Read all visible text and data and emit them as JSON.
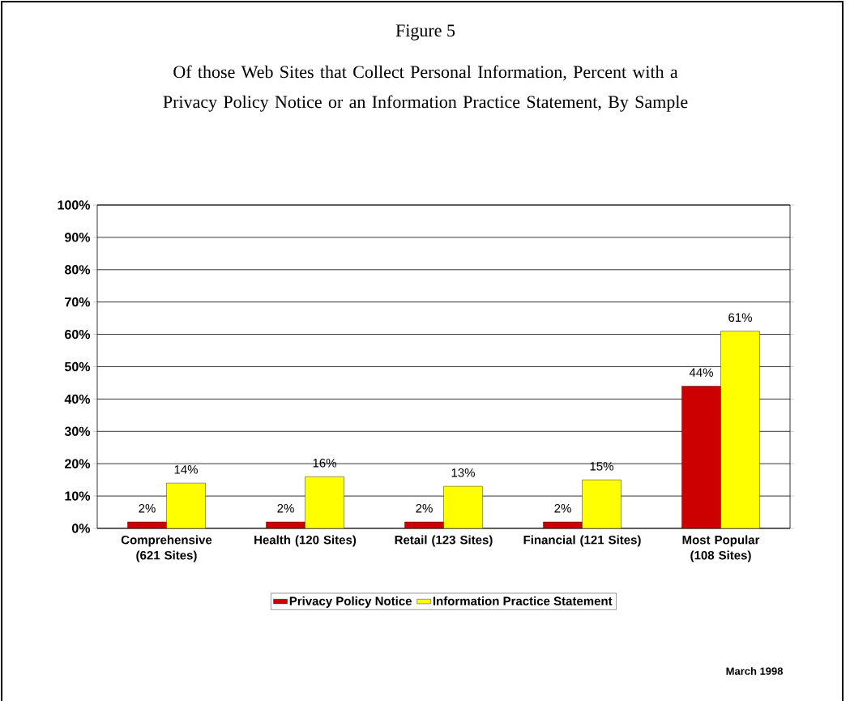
{
  "chart_data": {
    "type": "bar",
    "title": "Figure 5",
    "subtitle": "Of those Web Sites that Collect Personal Information, Percent with a Privacy Policy Notice or an Information Practice Statement, By Sample",
    "categories": [
      "Comprehensive (621 Sites)",
      "Health (120 Sites)",
      "Retail (123 Sites)",
      "Financial (121 Sites)",
      "Most Popular (108 Sites)"
    ],
    "series": [
      {
        "name": "Privacy Policy Notice",
        "color": "#cc0000",
        "values": [
          2,
          2,
          2,
          2,
          44
        ],
        "value_labels": [
          "2%",
          "2%",
          "2%",
          "2%",
          "44%"
        ]
      },
      {
        "name": "Information Practice Statement",
        "color": "#ffff00",
        "values": [
          14,
          16,
          13,
          15,
          61
        ],
        "value_labels": [
          "14%",
          "16%",
          "13%",
          "15%",
          "61%"
        ]
      }
    ],
    "ylim": [
      0,
      100
    ],
    "yticks": [
      {
        "value": 0,
        "label": "0%"
      },
      {
        "value": 10,
        "label": "10%"
      },
      {
        "value": 20,
        "label": "20%"
      },
      {
        "value": 30,
        "label": "30%"
      },
      {
        "value": 40,
        "label": "40%"
      },
      {
        "value": 50,
        "label": "50%"
      },
      {
        "value": 60,
        "label": "60%"
      },
      {
        "value": 70,
        "label": "70%"
      },
      {
        "value": 80,
        "label": "80%"
      },
      {
        "value": 90,
        "label": "90%"
      },
      {
        "value": 100,
        "label": "100%"
      }
    ],
    "grid": "y",
    "legend": "bottom",
    "annotations": [
      "March 1998"
    ]
  }
}
